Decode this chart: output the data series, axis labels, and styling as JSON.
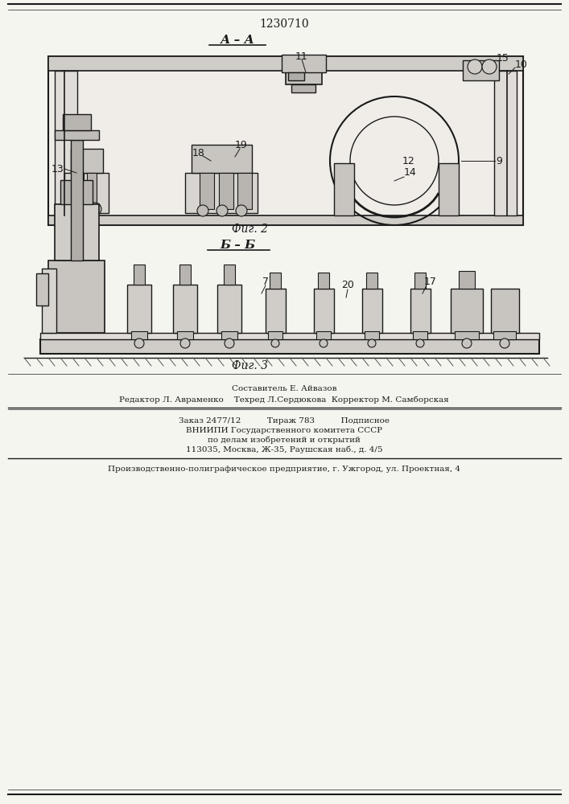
{
  "patent_number": "1230710",
  "section_label_1": "А – А",
  "section_label_2": "Б – Б",
  "fig_label_1": "Фиг. 2",
  "fig_label_2": "Фиг. 3",
  "footer_line1": "Составитель Е. Айвазов",
  "footer_line2": "Редактор Л. Авраменко    Техред Л.Сердюкова  Корректор М. Самборская",
  "footer_line3": "Заказ 2477/12          Тираж 783          Подписное",
  "footer_line4": "ВНИИПИ Государственного комитета СССР",
  "footer_line5": "по делам изобретений и открытий",
  "footer_line6": "113035, Москва, Ж-35, Раушская наб., д. 4/5",
  "footer_line7": "Производственно-полиграфическое предприятие, г. Ужгород, ул. Проектная, 4",
  "bg_color": "#f5f5f0",
  "line_color": "#1a1a1a",
  "gray1": "#d0cdc8",
  "gray2": "#c8c5c0",
  "gray3": "#b8b5b0",
  "gray4": "#e0ddd8",
  "gray5": "#c0bdb8",
  "gray6": "#b0ada8",
  "gray7": "#d8d5d0",
  "gray8": "#f0ede8"
}
